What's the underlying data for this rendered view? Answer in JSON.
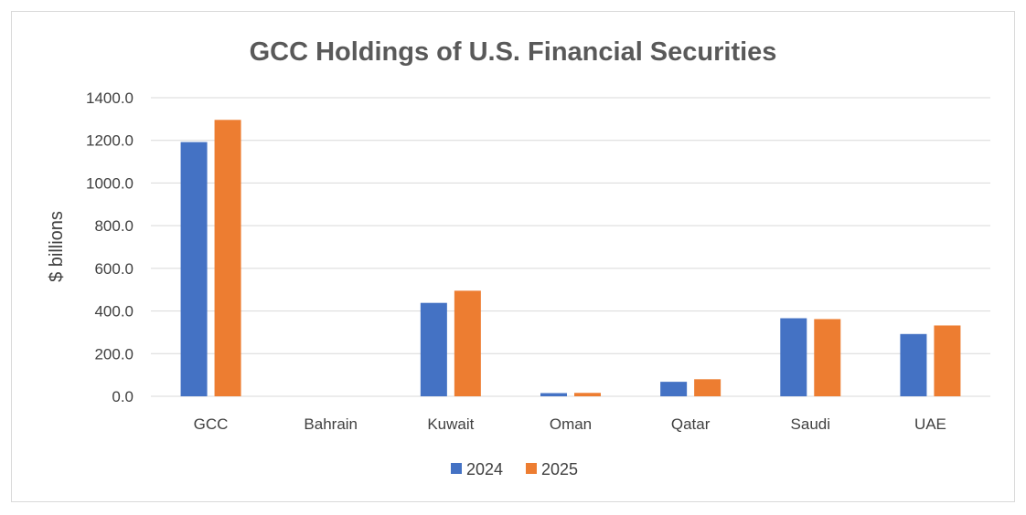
{
  "chart_data": {
    "type": "bar",
    "title": "GCC Holdings of U.S. Financial Securities",
    "xlabel": "",
    "ylabel": "$ billions",
    "categories": [
      "GCC",
      "Bahrain",
      "Kuwait",
      "Oman",
      "Qatar",
      "Saudi",
      "UAE"
    ],
    "series": [
      {
        "name": "2024",
        "color": "#4472C4",
        "values": [
          1192,
          0,
          438,
          15,
          68,
          366,
          292
        ]
      },
      {
        "name": "2025",
        "color": "#ED7D31",
        "values": [
          1296,
          0,
          495,
          16,
          80,
          362,
          332
        ]
      }
    ],
    "ylim": [
      0,
      1400
    ],
    "yticks": [
      "0.0",
      "200.0",
      "400.0",
      "600.0",
      "800.0",
      "1000.0",
      "1200.0",
      "1400.0"
    ],
    "grid": true,
    "legend_position": "bottom"
  }
}
